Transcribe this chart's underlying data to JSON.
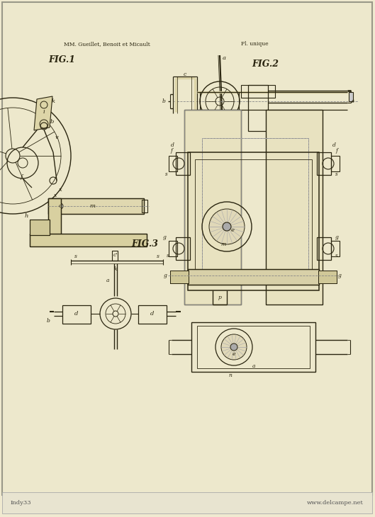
{
  "bg_paper": "#f0ead0",
  "bg_page": "#ede8cc",
  "line_color": "#2a2510",
  "hatch_color": "#5a5030",
  "dim_color": "#4a4428",
  "title_left": "MM. Gueillet, Benoit et Micault",
  "title_right": "Pl. unique",
  "fig1_label": "FIG.1",
  "fig2_label": "FIG.2",
  "fig3_label": "FIG.3",
  "footer_left": "Indy33",
  "footer_right": "www.delcampe.net"
}
